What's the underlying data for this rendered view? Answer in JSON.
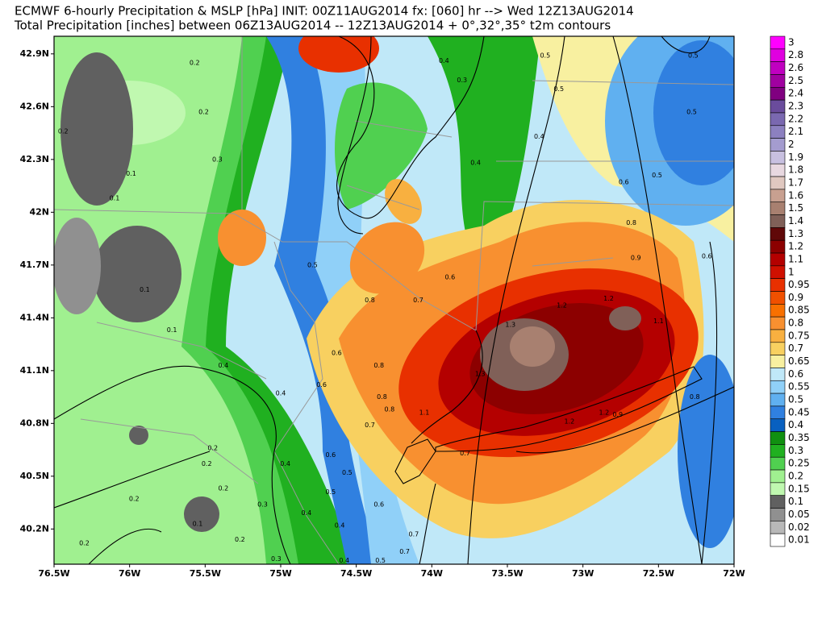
{
  "header": {
    "title_line1": "ECMWF 6-hourly Precipitation & MSLP [hPa] INIT: 00Z11AUG2014 fx: [060] hr --> Wed 12Z13AUG2014",
    "title_line2": "Total Precipitation [inches] between 06Z13AUG2014 -- 12Z13AUG2014  + 0°,32°,35° t2m contours"
  },
  "map": {
    "lonlim": [
      -76.5,
      -72
    ],
    "latlim": [
      40.0,
      43.0
    ],
    "lon_ticks": [
      {
        "value": -76.5,
        "label": "76.5W"
      },
      {
        "value": -76,
        "label": "76W"
      },
      {
        "value": -75.5,
        "label": "75.5W"
      },
      {
        "value": -75,
        "label": "75W"
      },
      {
        "value": -74.5,
        "label": "74.5W"
      },
      {
        "value": -74,
        "label": "74W"
      },
      {
        "value": -73.5,
        "label": "73.5W"
      },
      {
        "value": -73,
        "label": "73W"
      },
      {
        "value": -72.5,
        "label": "72.5W"
      },
      {
        "value": -72,
        "label": "72W"
      }
    ],
    "lat_ticks": [
      {
        "value": 40.2,
        "label": "40.2N"
      },
      {
        "value": 40.5,
        "label": "40.5N"
      },
      {
        "value": 40.8,
        "label": "40.8N"
      },
      {
        "value": 41.1,
        "label": "41.1N"
      },
      {
        "value": 41.4,
        "label": "41.4N"
      },
      {
        "value": 41.7,
        "label": "41.7N"
      },
      {
        "value": 42,
        "label": "42N"
      },
      {
        "value": 42.3,
        "label": "42.3N"
      },
      {
        "value": 42.6,
        "label": "42.6N"
      },
      {
        "value": 42.9,
        "label": "42.9N"
      }
    ],
    "contour_labels": [
      {
        "lon": -75.57,
        "lat": 42.85,
        "value": 0.2
      },
      {
        "lon": -76.44,
        "lat": 42.46,
        "value": 0.2
      },
      {
        "lon": -75.51,
        "lat": 42.57,
        "value": 0.2
      },
      {
        "lon": -75.42,
        "lat": 42.3,
        "value": 0.3
      },
      {
        "lon": -75.99,
        "lat": 42.22,
        "value": 0.1
      },
      {
        "lon": -76.1,
        "lat": 42.08,
        "value": 0.1
      },
      {
        "lon": -75.9,
        "lat": 41.56,
        "value": 0.1
      },
      {
        "lon": -75.72,
        "lat": 41.33,
        "value": 0.1
      },
      {
        "lon": -75.38,
        "lat": 41.13,
        "value": 0.4
      },
      {
        "lon": -75.0,
        "lat": 40.97,
        "value": 0.4
      },
      {
        "lon": -74.79,
        "lat": 41.7,
        "value": 0.5
      },
      {
        "lon": -74.63,
        "lat": 41.2,
        "value": 0.6
      },
      {
        "lon": -74.73,
        "lat": 41.02,
        "value": 0.6
      },
      {
        "lon": -74.41,
        "lat": 41.5,
        "value": 0.8
      },
      {
        "lon": -74.09,
        "lat": 41.5,
        "value": 0.7
      },
      {
        "lon": -73.88,
        "lat": 41.63,
        "value": 0.6
      },
      {
        "lon": -74.35,
        "lat": 41.13,
        "value": 0.8
      },
      {
        "lon": -74.33,
        "lat": 40.95,
        "value": 0.8
      },
      {
        "lon": -74.28,
        "lat": 40.88,
        "value": 0.8
      },
      {
        "lon": -74.41,
        "lat": 40.79,
        "value": 0.7
      },
      {
        "lon": -73.92,
        "lat": 42.86,
        "value": 0.4
      },
      {
        "lon": -73.8,
        "lat": 42.75,
        "value": 0.3
      },
      {
        "lon": -73.71,
        "lat": 42.28,
        "value": 0.4
      },
      {
        "lon": -73.29,
        "lat": 42.43,
        "value": 0.4
      },
      {
        "lon": -73.25,
        "lat": 42.89,
        "value": 0.5
      },
      {
        "lon": -73.16,
        "lat": 42.7,
        "value": 0.5
      },
      {
        "lon": -72.27,
        "lat": 42.89,
        "value": 0.5
      },
      {
        "lon": -72.28,
        "lat": 42.57,
        "value": 0.5
      },
      {
        "lon": -72.51,
        "lat": 42.21,
        "value": 0.5
      },
      {
        "lon": -72.73,
        "lat": 42.17,
        "value": 0.6
      },
      {
        "lon": -72.68,
        "lat": 41.94,
        "value": 0.8
      },
      {
        "lon": -72.65,
        "lat": 41.74,
        "value": 0.9
      },
      {
        "lon": -72.18,
        "lat": 41.75,
        "value": 0.6
      },
      {
        "lon": -73.14,
        "lat": 41.47,
        "value": 1.2
      },
      {
        "lon": -72.83,
        "lat": 41.51,
        "value": 1.2
      },
      {
        "lon": -72.5,
        "lat": 41.38,
        "value": 1.1
      },
      {
        "lon": -73.48,
        "lat": 41.36,
        "value": 1.3
      },
      {
        "lon": -73.68,
        "lat": 41.08,
        "value": 1.3
      },
      {
        "lon": -73.09,
        "lat": 40.81,
        "value": 1.2
      },
      {
        "lon": -72.86,
        "lat": 40.86,
        "value": 1.2
      },
      {
        "lon": -72.77,
        "lat": 40.85,
        "value": 0.9
      },
      {
        "lon": -74.05,
        "lat": 40.86,
        "value": 1.1
      },
      {
        "lon": -73.78,
        "lat": 40.63,
        "value": 0.7
      },
      {
        "lon": -74.56,
        "lat": 40.52,
        "value": 0.5
      },
      {
        "lon": -74.67,
        "lat": 40.62,
        "value": 0.6
      },
      {
        "lon": -74.67,
        "lat": 40.41,
        "value": 0.5
      },
      {
        "lon": -74.61,
        "lat": 40.22,
        "value": 0.4
      },
      {
        "lon": -74.35,
        "lat": 40.34,
        "value": 0.6
      },
      {
        "lon": -74.12,
        "lat": 40.17,
        "value": 0.7
      },
      {
        "lon": -74.18,
        "lat": 40.07,
        "value": 0.7
      },
      {
        "lon": -74.34,
        "lat": 40.02,
        "value": 0.5
      },
      {
        "lon": -74.58,
        "lat": 40.02,
        "value": 0.4
      },
      {
        "lon": -75.12,
        "lat": 40.34,
        "value": 0.3
      },
      {
        "lon": -74.83,
        "lat": 40.29,
        "value": 0.4
      },
      {
        "lon": -75.03,
        "lat": 40.03,
        "value": 0.3
      },
      {
        "lon": -75.45,
        "lat": 40.66,
        "value": 0.2
      },
      {
        "lon": -75.49,
        "lat": 40.57,
        "value": 0.2
      },
      {
        "lon": -75.38,
        "lat": 40.43,
        "value": 0.2
      },
      {
        "lon": -75.97,
        "lat": 40.37,
        "value": 0.2
      },
      {
        "lon": -75.55,
        "lat": 40.23,
        "value": 0.1
      },
      {
        "lon": -76.3,
        "lat": 40.12,
        "value": 0.2
      },
      {
        "lon": -75.27,
        "lat": 40.14,
        "value": 0.2
      },
      {
        "lon": -74.97,
        "lat": 40.57,
        "value": 0.4
      },
      {
        "lon": -72.26,
        "lat": 40.95,
        "value": 0.8
      }
    ]
  },
  "colorbar": {
    "levels": [
      3,
      2.8,
      2.6,
      2.5,
      2.4,
      2.3,
      2.2,
      2.1,
      2,
      1.9,
      1.8,
      1.7,
      1.6,
      1.5,
      1.4,
      1.3,
      1.2,
      1.1,
      1,
      0.95,
      0.9,
      0.85,
      0.8,
      0.75,
      0.7,
      0.65,
      0.6,
      0.55,
      0.5,
      0.45,
      0.4,
      0.35,
      0.3,
      0.25,
      0.2,
      0.15,
      0.1,
      0.05,
      0.02,
      0.01
    ],
    "colors": [
      "#ff00ff",
      "#e000e0",
      "#c000c0",
      "#a000a0",
      "#800080",
      "#6a4c9c",
      "#7a68b0",
      "#8c80c0",
      "#a49ccf",
      "#c8c0e0",
      "#e8d8e0",
      "#e0c8c0",
      "#c8a090",
      "#a88070",
      "#806058",
      "#600808",
      "#8c0000",
      "#b40000",
      "#d01000",
      "#e83000",
      "#f05000",
      "#f87000",
      "#f89030",
      "#f8b040",
      "#f8d060",
      "#f8f0a0",
      "#c0e8f8",
      "#90d0f8",
      "#60b0f0",
      "#3080e0",
      "#0860c0",
      "#109010",
      "#20b020",
      "#50d050",
      "#a0f090",
      "#c0f8b0",
      "#606060",
      "#909090",
      "#b8b8b8",
      "#ffffff"
    ]
  }
}
